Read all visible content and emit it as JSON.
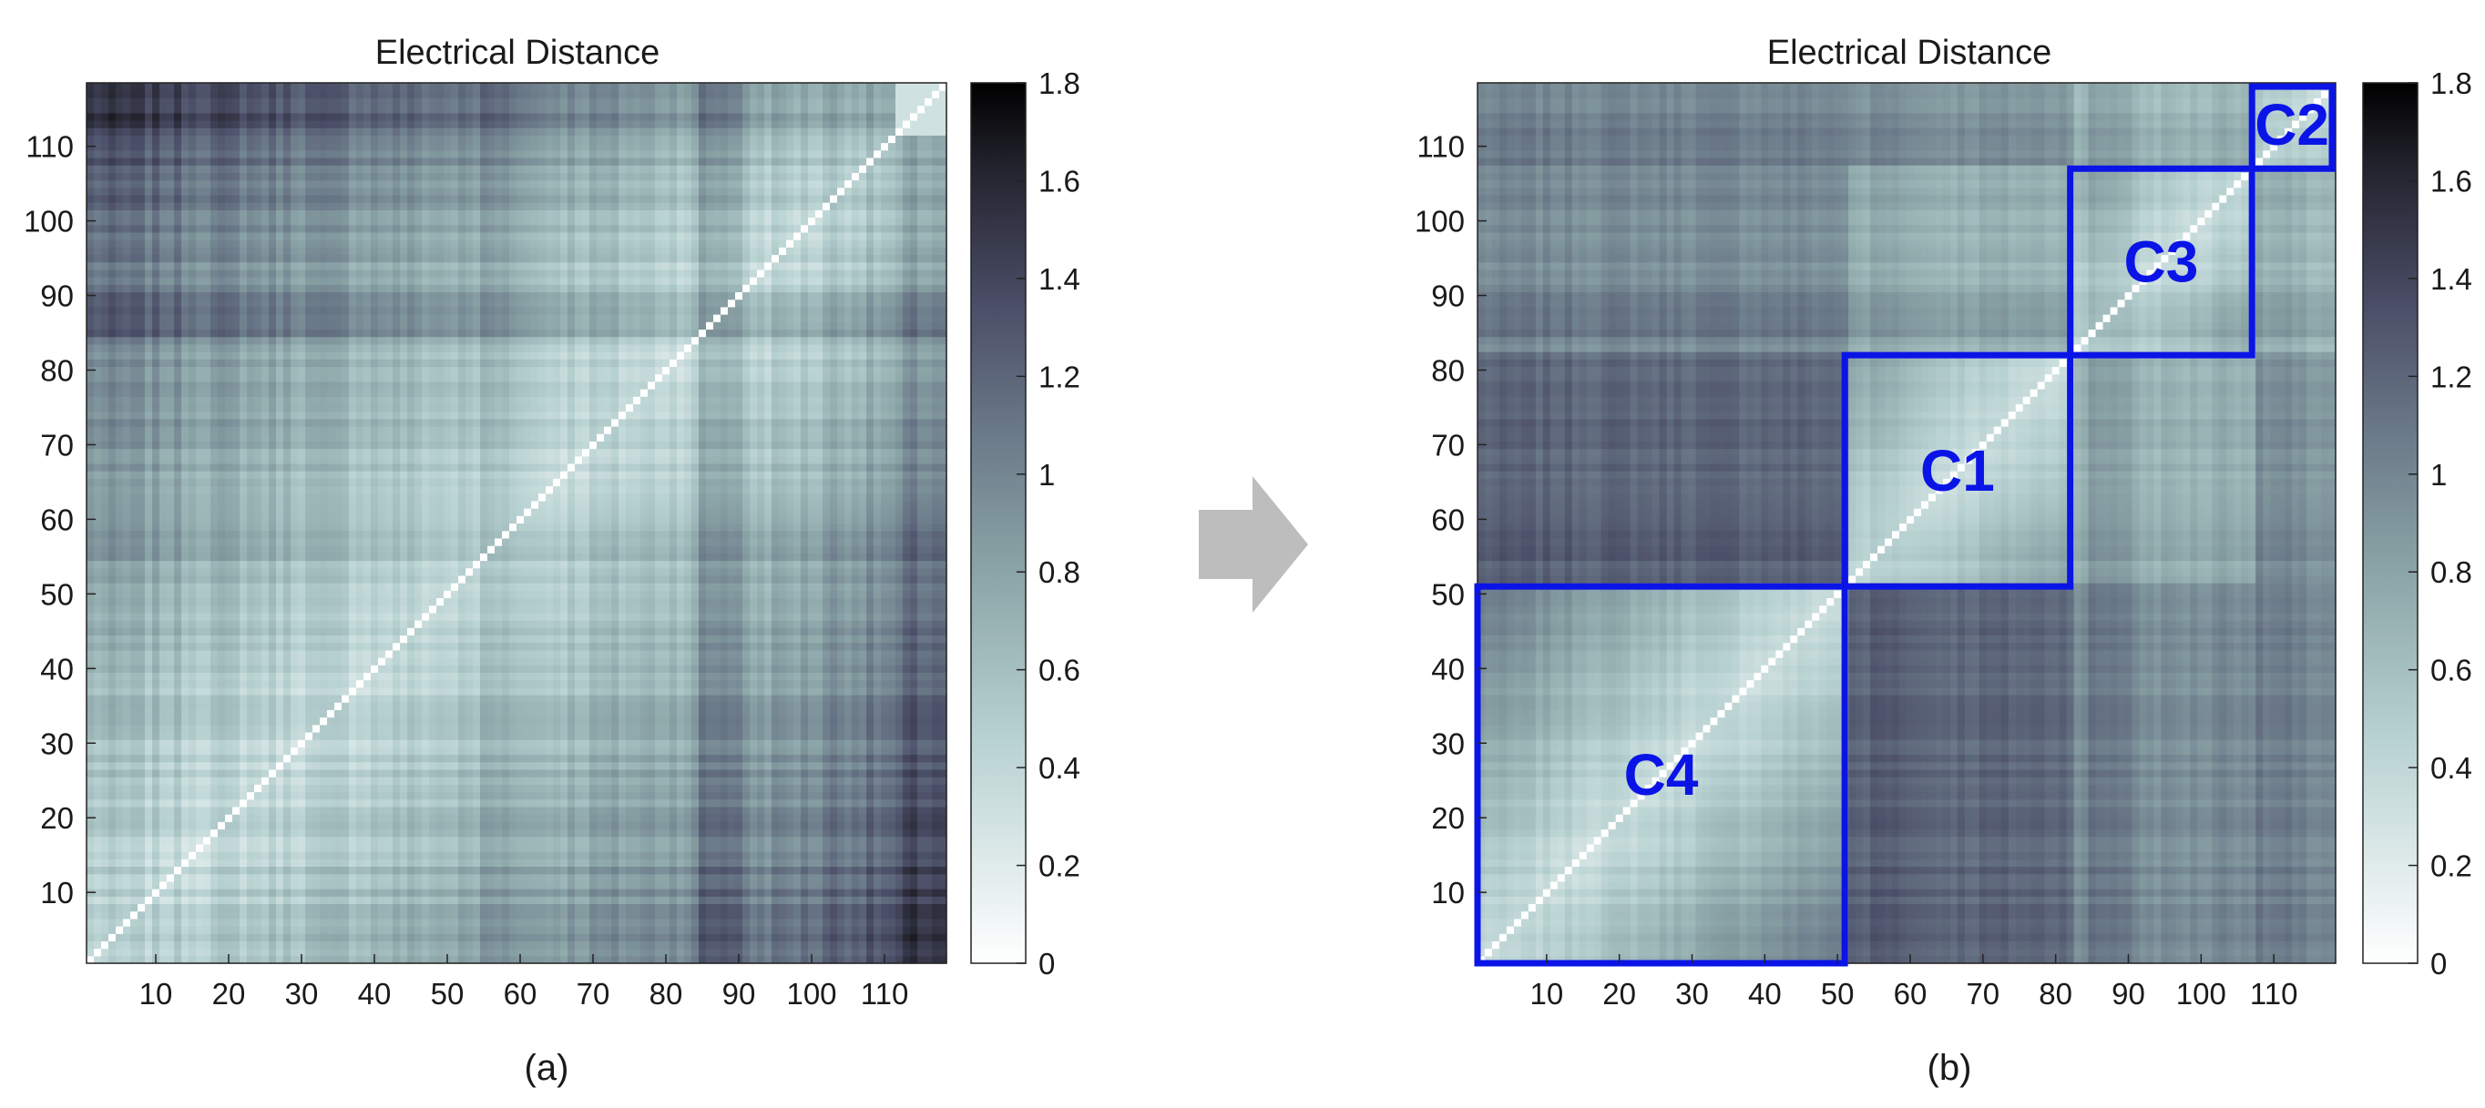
{
  "colors": {
    "cluster_box": "#0a14e6",
    "arrow": "#bdbdbd",
    "colormap_low": "#ffffff",
    "colormap_high": "#000000"
  },
  "chart_data": [
    {
      "type": "heatmap",
      "title": "Electrical Distance",
      "panel_label": "(a)",
      "n_buses": 118,
      "xlim": [
        0.5,
        118.5
      ],
      "ylim": [
        0.5,
        118.5
      ],
      "xticks": [
        10,
        20,
        30,
        40,
        50,
        60,
        70,
        80,
        90,
        100,
        110
      ],
      "yticks": [
        10,
        20,
        30,
        40,
        50,
        60,
        70,
        80,
        90,
        100,
        110
      ],
      "colorbar": {
        "min": 0,
        "max": 1.8,
        "ticks": [
          0,
          0.2,
          0.4,
          0.6,
          0.8,
          1,
          1.2,
          1.4,
          1.6,
          1.8
        ]
      },
      "bus_order": "original",
      "diagonal_value": 0,
      "note_values": "symmetric distance matrix; values estimated from shading"
    },
    {
      "type": "heatmap",
      "title": "Electrical Distance",
      "panel_label": "(b)",
      "n_buses": 118,
      "xlim": [
        0.5,
        118.5
      ],
      "ylim": [
        0.5,
        118.5
      ],
      "xticks": [
        10,
        20,
        30,
        40,
        50,
        60,
        70,
        80,
        90,
        100,
        110
      ],
      "yticks": [
        10,
        20,
        30,
        40,
        50,
        60,
        70,
        80,
        90,
        100,
        110
      ],
      "colorbar": {
        "min": 0,
        "max": 1.8,
        "ticks": [
          0,
          0.2,
          0.4,
          0.6,
          0.8,
          1,
          1.2,
          1.4,
          1.6,
          1.8
        ]
      },
      "bus_order": "clustered",
      "clusters": [
        {
          "name": "C1",
          "start": 51,
          "end": 82
        },
        {
          "name": "C2",
          "start": 107,
          "end": 118
        },
        {
          "name": "C3",
          "start": 82,
          "end": 107
        },
        {
          "name": "C4",
          "start": 0.5,
          "end": 51
        }
      ]
    }
  ]
}
